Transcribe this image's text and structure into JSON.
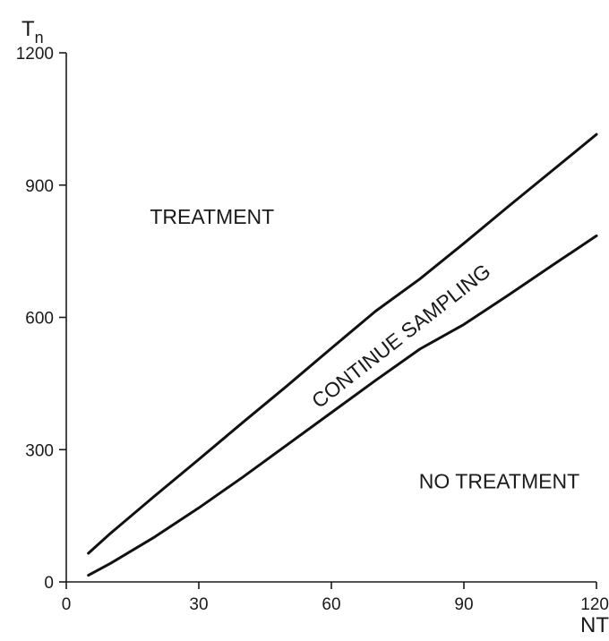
{
  "chart_data": {
    "type": "line",
    "xlabel": "NT",
    "ylabel_main": "T",
    "ylabel_sub": "n",
    "xlim": [
      0,
      120
    ],
    "ylim": [
      0,
      1200
    ],
    "x_ticks": [
      0,
      30,
      60,
      90,
      120
    ],
    "y_ticks": [
      0,
      300,
      600,
      900,
      1200
    ],
    "x_tick_labels": [
      "0",
      "30",
      "60",
      "90",
      "120"
    ],
    "y_tick_labels": [
      "0",
      "300",
      "600",
      "900",
      "1200"
    ],
    "grid": false,
    "series": [
      {
        "x": [
          5,
          10,
          20,
          30,
          40,
          50,
          60,
          70,
          80,
          90,
          100,
          110,
          120
        ],
        "y": [
          65,
          110,
          195,
          278,
          362,
          445,
          530,
          614,
          687,
          768,
          851,
          933,
          1015
        ]
      },
      {
        "x": [
          5,
          10,
          20,
          30,
          40,
          50,
          60,
          70,
          80,
          90,
          100,
          110,
          120
        ],
        "y": [
          15,
          42,
          102,
          168,
          238,
          311,
          384,
          457,
          528,
          584,
          650,
          718,
          785
        ]
      }
    ],
    "annotations": [
      {
        "text": "TREATMENT",
        "x": 33,
        "y": 825,
        "rotate": 0
      },
      {
        "text": "CONTINUE SAMPLING",
        "x": 76,
        "y": 555,
        "rotate": -38
      },
      {
        "text": "NO TREATMENT",
        "x": 98,
        "y": 225,
        "rotate": 0
      }
    ]
  }
}
